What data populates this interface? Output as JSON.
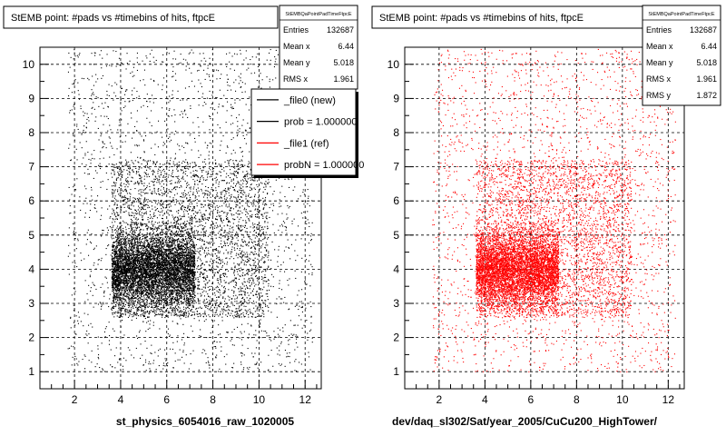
{
  "chart_data": [
    {
      "type": "scatter",
      "title": "StEMB point: #pads vs #timebins of hits, ftpcE",
      "xlabel": "st_physics_6054016_raw_1020005",
      "ylabel": "",
      "xlim": [
        0.5,
        12.7
      ],
      "ylim": [
        0.5,
        10.5
      ],
      "x_ticks": [
        "2",
        "4",
        "6",
        "8",
        "10",
        "12"
      ],
      "y_ticks": [
        "1",
        "2",
        "3",
        "4",
        "5",
        "6",
        "7",
        "8",
        "9",
        "10"
      ],
      "grid": true,
      "marker_color": "#000000",
      "stats_box": {
        "header": "StEMBQaPointPadTimeFtpcE",
        "rows": [
          {
            "label": "Entries",
            "value": "132687"
          },
          {
            "label": "Mean x",
            "value": "6.44"
          },
          {
            "label": "Mean y",
            "value": "5.018"
          },
          {
            "label": "RMS x",
            "value": "1.961"
          }
        ]
      },
      "legend": {
        "placement": "top-right",
        "entries": [
          {
            "label": "_file0 (new)",
            "color": "#000000"
          },
          {
            "label": "prob = 1.000000",
            "color": "#000000"
          },
          {
            "label": "_file1 (ref)",
            "color": "#ff0000"
          },
          {
            "label": "probN = 1.000000",
            "color": "#ff0000"
          }
        ]
      },
      "distribution": {
        "entries": 132687,
        "mean_x": 6.44,
        "mean_y": 5.018,
        "core_x_range": [
          3.6,
          7.2
        ],
        "core_y_range": [
          2.6,
          5.3
        ]
      }
    },
    {
      "type": "scatter",
      "title": "StEMB point: #pads vs #timebins of hits, ftpcE",
      "xlabel": "dev/daq_sl302/Sat/year_2005/CuCu200_HighTower/",
      "ylabel": "",
      "xlim": [
        0.5,
        12.7
      ],
      "ylim": [
        0.5,
        10.5
      ],
      "x_ticks": [
        "2",
        "4",
        "6",
        "8",
        "10",
        "12"
      ],
      "y_ticks": [
        "1",
        "2",
        "3",
        "4",
        "5",
        "6",
        "7",
        "8",
        "9",
        "10"
      ],
      "grid": true,
      "marker_color": "#ff0000",
      "stats_box": {
        "header": "StEMBQaPointPadTimeFtpcE",
        "rows": [
          {
            "label": "Entries",
            "value": "132687"
          },
          {
            "label": "Mean x",
            "value": "6.44"
          },
          {
            "label": "Mean y",
            "value": "5.018"
          },
          {
            "label": "RMS x",
            "value": "1.961"
          },
          {
            "label": "RMS y",
            "value": "1.872"
          }
        ]
      },
      "distribution": {
        "entries": 132687,
        "mean_x": 6.44,
        "mean_y": 5.018,
        "core_x_range": [
          3.6,
          7.2
        ],
        "core_y_range": [
          2.6,
          5.3
        ]
      }
    }
  ]
}
